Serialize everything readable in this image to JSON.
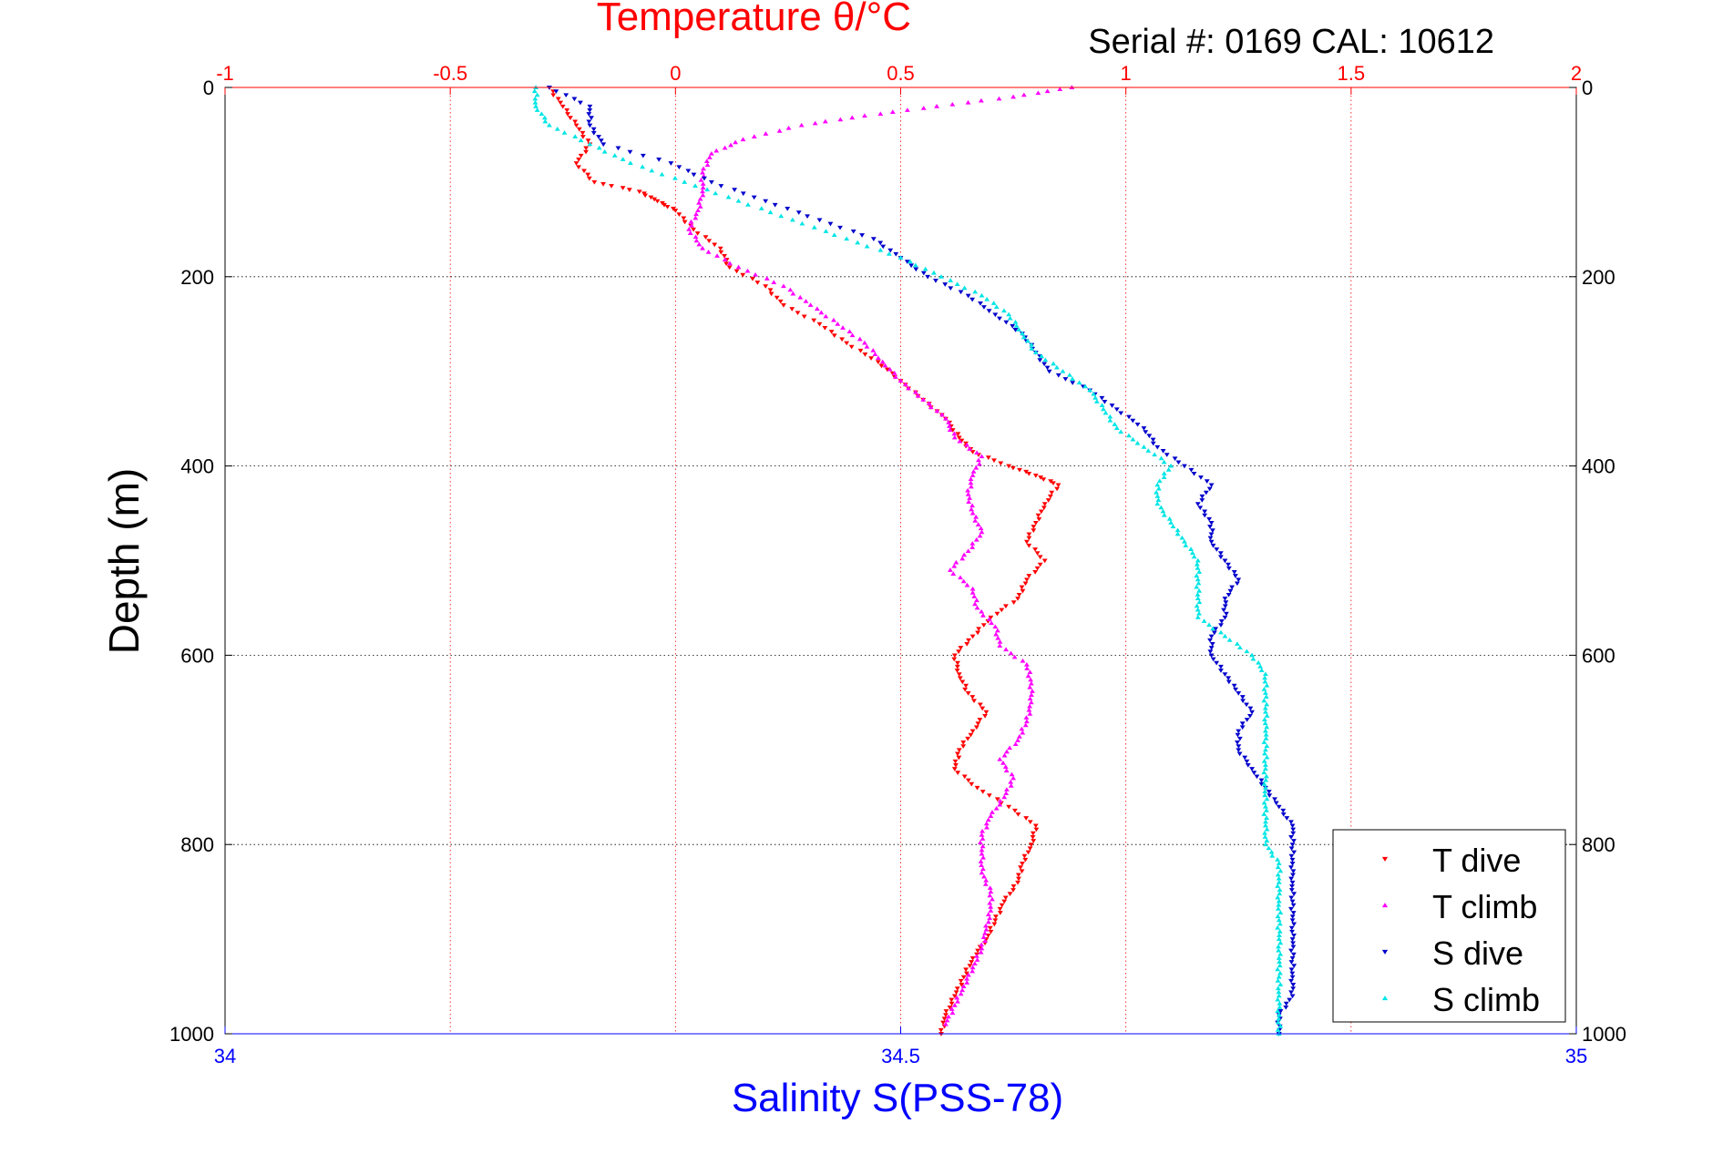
{
  "chart_data": {
    "type": "scatter",
    "serial_label": "Serial #: 0169 CAL: 10612",
    "top_axis": {
      "label": "Temperature θ/°C",
      "range": [
        -1,
        2
      ],
      "ticks": [
        -1,
        -0.5,
        0,
        0.5,
        1,
        1.5,
        2
      ],
      "tick_labels": [
        "-1",
        "-0.5",
        "0",
        "0.5",
        "1",
        "1.5",
        "2"
      ],
      "color": "#ff0000"
    },
    "bottom_axis": {
      "label": "Salinity S(PSS-78)",
      "range": [
        34,
        35
      ],
      "ticks": [
        34,
        34.5,
        35
      ],
      "tick_labels": [
        "34",
        "34.5",
        "35"
      ],
      "color": "#0000ff"
    },
    "y_axis": {
      "label": "Depth (m)",
      "range": [
        0,
        1000
      ],
      "reversed": true,
      "ticks": [
        0,
        200,
        400,
        600,
        800,
        1000
      ],
      "tick_labels": [
        "0",
        "200",
        "400",
        "600",
        "800",
        "1000"
      ]
    },
    "grid": true,
    "legend_position": "bottom-right",
    "series": [
      {
        "name": "T dive",
        "axis": "temperature",
        "color": "#ff0000",
        "marker": "triangle-down",
        "points": [
          [
            -0.28,
            0
          ],
          [
            -0.25,
            20
          ],
          [
            -0.22,
            40
          ],
          [
            -0.19,
            60
          ],
          [
            -0.22,
            80
          ],
          [
            -0.18,
            100
          ],
          [
            -0.08,
            110
          ],
          [
            -0.04,
            120
          ],
          [
            0.0,
            130
          ],
          [
            0.04,
            150
          ],
          [
            0.1,
            170
          ],
          [
            0.12,
            190
          ],
          [
            0.2,
            210
          ],
          [
            0.24,
            230
          ],
          [
            0.32,
            250
          ],
          [
            0.38,
            270
          ],
          [
            0.45,
            290
          ],
          [
            0.5,
            310
          ],
          [
            0.55,
            330
          ],
          [
            0.6,
            350
          ],
          [
            0.63,
            370
          ],
          [
            0.66,
            385
          ],
          [
            0.74,
            400
          ],
          [
            0.8,
            410
          ],
          [
            0.85,
            420
          ],
          [
            0.82,
            440
          ],
          [
            0.8,
            460
          ],
          [
            0.78,
            480
          ],
          [
            0.82,
            500
          ],
          [
            0.78,
            520
          ],
          [
            0.76,
            540
          ],
          [
            0.7,
            560
          ],
          [
            0.66,
            580
          ],
          [
            0.62,
            600
          ],
          [
            0.63,
            620
          ],
          [
            0.65,
            640
          ],
          [
            0.69,
            660
          ],
          [
            0.66,
            680
          ],
          [
            0.63,
            700
          ],
          [
            0.62,
            720
          ],
          [
            0.67,
            740
          ],
          [
            0.74,
            760
          ],
          [
            0.8,
            780
          ],
          [
            0.79,
            800
          ],
          [
            0.77,
            820
          ],
          [
            0.76,
            840
          ],
          [
            0.73,
            860
          ],
          [
            0.71,
            880
          ],
          [
            0.69,
            900
          ],
          [
            0.66,
            920
          ],
          [
            0.64,
            940
          ],
          [
            0.62,
            960
          ],
          [
            0.6,
            980
          ],
          [
            0.59,
            1000
          ]
        ]
      },
      {
        "name": "T climb",
        "axis": "temperature",
        "color": "#ff00ff",
        "marker": "triangle-up",
        "points": [
          [
            0.88,
            0
          ],
          [
            0.75,
            10
          ],
          [
            0.58,
            20
          ],
          [
            0.42,
            30
          ],
          [
            0.28,
            40
          ],
          [
            0.15,
            55
          ],
          [
            0.08,
            70
          ],
          [
            0.06,
            90
          ],
          [
            0.06,
            110
          ],
          [
            0.05,
            130
          ],
          [
            0.03,
            150
          ],
          [
            0.06,
            170
          ],
          [
            0.14,
            190
          ],
          [
            0.24,
            210
          ],
          [
            0.3,
            230
          ],
          [
            0.36,
            250
          ],
          [
            0.42,
            270
          ],
          [
            0.46,
            290
          ],
          [
            0.5,
            310
          ],
          [
            0.55,
            330
          ],
          [
            0.6,
            350
          ],
          [
            0.62,
            370
          ],
          [
            0.68,
            390
          ],
          [
            0.66,
            410
          ],
          [
            0.65,
            430
          ],
          [
            0.66,
            450
          ],
          [
            0.68,
            470
          ],
          [
            0.65,
            490
          ],
          [
            0.61,
            510
          ],
          [
            0.66,
            530
          ],
          [
            0.67,
            550
          ],
          [
            0.71,
            570
          ],
          [
            0.72,
            590
          ],
          [
            0.78,
            610
          ],
          [
            0.79,
            630
          ],
          [
            0.79,
            650
          ],
          [
            0.78,
            670
          ],
          [
            0.76,
            690
          ],
          [
            0.72,
            710
          ],
          [
            0.75,
            730
          ],
          [
            0.73,
            750
          ],
          [
            0.7,
            770
          ],
          [
            0.68,
            790
          ],
          [
            0.68,
            810
          ],
          [
            0.68,
            830
          ],
          [
            0.7,
            850
          ],
          [
            0.7,
            870
          ],
          [
            0.69,
            890
          ],
          [
            0.68,
            910
          ],
          [
            0.66,
            930
          ],
          [
            0.64,
            950
          ],
          [
            0.62,
            970
          ],
          [
            0.6,
            990
          ]
        ]
      },
      {
        "name": "S dive",
        "axis": "salinity",
        "color": "#0000cc",
        "marker": "triangle-down",
        "points": [
          [
            34.24,
            0
          ],
          [
            34.27,
            20
          ],
          [
            34.27,
            40
          ],
          [
            34.28,
            60
          ],
          [
            34.33,
            80
          ],
          [
            34.36,
            100
          ],
          [
            34.4,
            120
          ],
          [
            34.44,
            140
          ],
          [
            34.48,
            160
          ],
          [
            34.5,
            180
          ],
          [
            34.52,
            200
          ],
          [
            34.55,
            220
          ],
          [
            34.57,
            240
          ],
          [
            34.59,
            260
          ],
          [
            34.6,
            280
          ],
          [
            34.61,
            300
          ],
          [
            34.64,
            320
          ],
          [
            34.66,
            340
          ],
          [
            34.68,
            360
          ],
          [
            34.69,
            380
          ],
          [
            34.71,
            400
          ],
          [
            34.73,
            420
          ],
          [
            34.72,
            440
          ],
          [
            34.73,
            460
          ],
          [
            34.73,
            480
          ],
          [
            34.74,
            500
          ],
          [
            34.75,
            520
          ],
          [
            34.74,
            540
          ],
          [
            34.74,
            560
          ],
          [
            34.73,
            580
          ],
          [
            34.73,
            600
          ],
          [
            34.74,
            620
          ],
          [
            34.75,
            640
          ],
          [
            34.76,
            660
          ],
          [
            34.75,
            680
          ],
          [
            34.75,
            700
          ],
          [
            34.76,
            720
          ],
          [
            34.77,
            740
          ],
          [
            34.78,
            760
          ],
          [
            34.79,
            780
          ],
          [
            34.79,
            800
          ],
          [
            34.79,
            820
          ],
          [
            34.79,
            840
          ],
          [
            34.79,
            860
          ],
          [
            34.79,
            880
          ],
          [
            34.79,
            900
          ],
          [
            34.79,
            920
          ],
          [
            34.79,
            940
          ],
          [
            34.79,
            960
          ],
          [
            34.78,
            980
          ],
          [
            34.78,
            1000
          ]
        ]
      },
      {
        "name": "S climb",
        "axis": "salinity",
        "color": "#00e5e5",
        "marker": "triangle-up",
        "points": [
          [
            34.23,
            0
          ],
          [
            34.23,
            20
          ],
          [
            34.24,
            40
          ],
          [
            34.27,
            60
          ],
          [
            34.3,
            80
          ],
          [
            34.34,
            100
          ],
          [
            34.38,
            120
          ],
          [
            34.42,
            140
          ],
          [
            34.46,
            160
          ],
          [
            34.5,
            180
          ],
          [
            34.53,
            200
          ],
          [
            34.56,
            220
          ],
          [
            34.58,
            240
          ],
          [
            34.59,
            260
          ],
          [
            34.6,
            280
          ],
          [
            34.62,
            300
          ],
          [
            34.64,
            320
          ],
          [
            34.65,
            340
          ],
          [
            34.66,
            360
          ],
          [
            34.68,
            380
          ],
          [
            34.7,
            400
          ],
          [
            34.69,
            420
          ],
          [
            34.69,
            440
          ],
          [
            34.7,
            460
          ],
          [
            34.71,
            480
          ],
          [
            34.72,
            500
          ],
          [
            34.72,
            520
          ],
          [
            34.72,
            540
          ],
          [
            34.72,
            560
          ],
          [
            34.74,
            580
          ],
          [
            34.76,
            600
          ],
          [
            34.77,
            620
          ],
          [
            34.77,
            640
          ],
          [
            34.77,
            660
          ],
          [
            34.77,
            680
          ],
          [
            34.77,
            700
          ],
          [
            34.77,
            720
          ],
          [
            34.77,
            740
          ],
          [
            34.77,
            760
          ],
          [
            34.77,
            780
          ],
          [
            34.77,
            800
          ],
          [
            34.78,
            820
          ],
          [
            34.78,
            840
          ],
          [
            34.78,
            860
          ],
          [
            34.78,
            880
          ],
          [
            34.78,
            900
          ],
          [
            34.78,
            920
          ],
          [
            34.78,
            940
          ],
          [
            34.78,
            960
          ],
          [
            34.78,
            980
          ],
          [
            34.78,
            1000
          ]
        ]
      }
    ]
  }
}
